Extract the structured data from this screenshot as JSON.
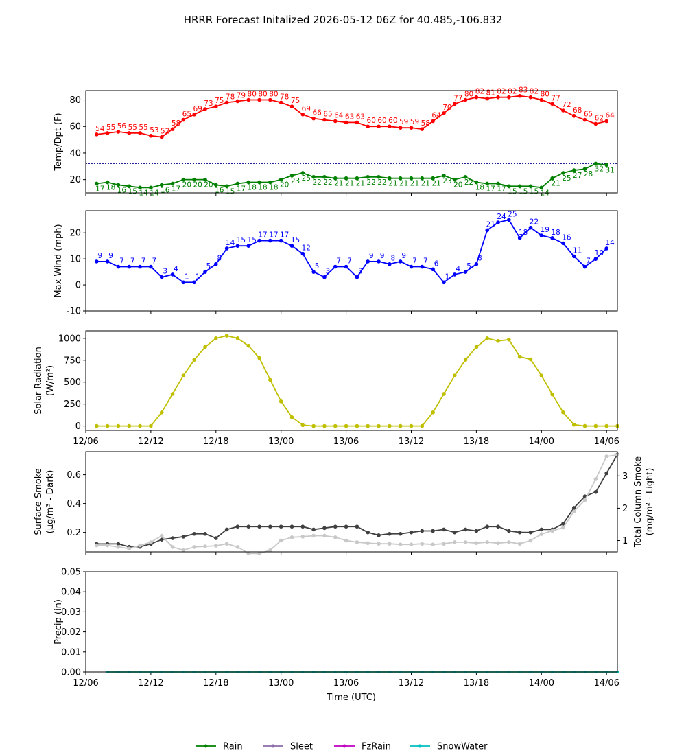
{
  "title": "HRRR Forecast Initalized 2026-05-12 06Z for 40.485,-106.832",
  "x_axis": {
    "label": "Time (UTC)",
    "tick_labels": [
      "12/06",
      "12/12",
      "12/18",
      "13/00",
      "13/06",
      "13/12",
      "13/18",
      "14/00",
      "14/06"
    ],
    "range_hours": [
      0,
      49
    ]
  },
  "legend": {
    "placement": "bottom-center",
    "items": [
      {
        "label": "Rain",
        "color": "#008000"
      },
      {
        "label": "Sleet",
        "color": "#8b6ca8"
      },
      {
        "label": "FzRain",
        "color": "#c000c0"
      },
      {
        "label": "SnowWater",
        "color": "#00c0c0"
      }
    ]
  },
  "colors": {
    "temp": "#ff0000",
    "dew": "#008000",
    "wind": "#0000ff",
    "solar": "#bfbf00",
    "smoke_dark": "#404040",
    "smoke_light": "#c8c8c8",
    "freezing_line": "#00008b"
  },
  "chart_data": [
    {
      "id": "temp",
      "type": "line",
      "ylabel": "Temp/Dpt (F)",
      "ylim": [
        10,
        87
      ],
      "yticks": [
        20,
        40,
        60,
        80
      ],
      "reference_line": 32,
      "series": [
        {
          "name": "",
          "color": "#ff0000",
          "values": [
            54,
            55,
            56,
            55,
            55,
            53,
            52,
            58,
            65,
            69,
            73,
            75,
            78,
            79,
            80,
            80,
            80,
            78,
            75,
            69,
            66,
            65,
            64,
            63,
            63,
            60,
            60,
            60,
            59,
            59,
            58,
            64,
            70,
            77,
            80,
            82,
            81,
            82,
            82,
            83,
            82,
            80,
            77,
            72,
            68,
            65,
            62,
            64
          ]
        },
        {
          "name": "",
          "color": "#008000",
          "values": [
            17,
            18,
            16,
            15,
            14,
            14,
            16,
            17,
            20,
            20,
            20,
            16,
            15,
            17,
            18,
            18,
            18,
            20,
            23,
            25,
            22,
            22,
            21,
            21,
            21,
            22,
            22,
            21,
            21,
            21,
            21,
            21,
            23,
            20,
            22,
            18,
            17,
            17,
            15,
            15,
            15,
            14,
            21,
            25,
            27,
            28,
            32,
            31
          ]
        }
      ]
    },
    {
      "id": "wind",
      "type": "line",
      "ylabel": "Max Wind (mph)",
      "ylim": [
        -10,
        28.5
      ],
      "yticks": [
        -10,
        0,
        10,
        20
      ],
      "series": [
        {
          "name": "",
          "color": "#0000ff",
          "values": [
            9,
            9,
            7,
            7,
            7,
            7,
            3,
            4,
            1,
            1,
            5,
            8,
            14,
            15,
            15,
            17,
            17,
            17,
            15,
            12,
            5,
            3,
            7,
            7,
            3,
            9,
            9,
            8,
            9,
            7,
            7,
            6,
            1,
            4,
            5,
            8,
            21,
            24,
            25,
            18,
            22,
            19,
            18,
            16,
            11,
            7,
            10,
            14
          ]
        }
      ]
    },
    {
      "id": "solar",
      "type": "line",
      "ylabel": "Solar Radiation",
      "ylabel_unit": "(W/m²)",
      "ylim": [
        -50,
        1085
      ],
      "yticks": [
        0,
        250,
        500,
        750,
        1000
      ],
      "series": [
        {
          "name": "",
          "color": "#bfbf00",
          "values": [
            0,
            0,
            0,
            0,
            0,
            0,
            155,
            365,
            575,
            755,
            900,
            1000,
            1030,
            1000,
            915,
            775,
            525,
            280,
            100,
            10,
            0,
            0,
            0,
            0,
            0,
            0,
            0,
            0,
            0,
            0,
            0,
            155,
            365,
            575,
            755,
            900,
            1000,
            970,
            985,
            790,
            760,
            575,
            360,
            155,
            15,
            0,
            0,
            0,
            0
          ]
        }
      ]
    },
    {
      "id": "smoke",
      "type": "line",
      "ylabel": "Surface Smoke",
      "ylabel_unit": "(μg/m³ - Dark)",
      "y2label": "Total Column Smoke",
      "y2label_unit": "(mg/m² - Light)",
      "ylim": [
        0.065,
        0.76
      ],
      "yticks": [
        0.2,
        0.4,
        0.6
      ],
      "y2lim": [
        0.65,
        3.75
      ],
      "y2ticks": [
        1,
        2,
        3
      ],
      "series": [
        {
          "name": "",
          "color": "#404040",
          "values": [
            0.12,
            0.12,
            0.12,
            0.1,
            0.1,
            0.12,
            0.15,
            0.16,
            0.17,
            0.19,
            0.19,
            0.16,
            0.22,
            0.24,
            0.24,
            0.24,
            0.24,
            0.24,
            0.24,
            0.24,
            0.22,
            0.23,
            0.24,
            0.24,
            0.24,
            0.2,
            0.18,
            0.19,
            0.19,
            0.2,
            0.21,
            0.21,
            0.22,
            0.2,
            0.22,
            0.21,
            0.24,
            0.24,
            0.21,
            0.2,
            0.2,
            0.22,
            0.22,
            0.26,
            0.37,
            0.45,
            0.48,
            0.61,
            0.74
          ]
        },
        {
          "name": "",
          "color": "#c8c8c8",
          "axis": "y2",
          "values": [
            0.85,
            0.85,
            0.8,
            0.75,
            0.85,
            0.95,
            1.15,
            0.8,
            0.7,
            0.8,
            0.82,
            0.84,
            0.9,
            0.8,
            0.6,
            0.6,
            0.7,
            1.0,
            1.1,
            1.12,
            1.15,
            1.15,
            1.1,
            1.0,
            0.95,
            0.92,
            0.9,
            0.9,
            0.88,
            0.88,
            0.9,
            0.88,
            0.9,
            0.95,
            0.95,
            0.92,
            0.95,
            0.92,
            0.95,
            0.9,
            1.0,
            1.2,
            1.3,
            1.4,
            1.9,
            2.25,
            2.9,
            3.6,
            3.65
          ]
        }
      ]
    },
    {
      "id": "precip",
      "type": "line",
      "ylabel": "Precip (in)",
      "ylim": [
        0,
        0.05
      ],
      "yticks": [
        0,
        0.01,
        0.02,
        0.03,
        0.04,
        0.05
      ],
      "ytick_labels": [
        "0.00",
        "0.01",
        "0.02",
        "0.03",
        "0.04",
        "0.05"
      ],
      "series": [
        {
          "name": "Rain",
          "color": "#008000",
          "values": [
            0,
            0,
            0,
            0,
            0,
            0,
            0,
            0,
            0,
            0,
            0,
            0,
            0,
            0,
            0,
            0,
            0,
            0,
            0,
            0,
            0,
            0,
            0,
            0,
            0,
            0,
            0,
            0,
            0,
            0,
            0,
            0,
            0,
            0,
            0,
            0,
            0,
            0,
            0,
            0,
            0,
            0,
            0,
            0,
            0,
            0,
            0,
            0
          ]
        },
        {
          "name": "SnowWater",
          "color": "#00c0c0",
          "values": [
            0,
            0,
            0,
            0,
            0,
            0,
            0,
            0,
            0,
            0,
            0,
            0,
            0,
            0,
            0,
            0,
            0,
            0,
            0,
            0,
            0,
            0,
            0,
            0,
            0,
            0,
            0,
            0,
            0,
            0,
            0,
            0,
            0,
            0,
            0,
            0,
            0,
            0,
            0,
            0,
            0,
            0,
            0,
            0,
            0,
            0,
            0,
            0
          ]
        }
      ]
    }
  ]
}
